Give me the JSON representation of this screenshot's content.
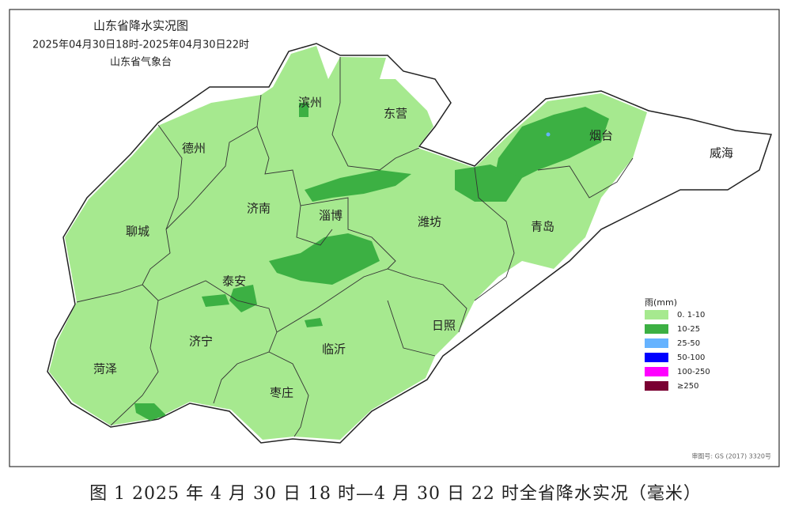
{
  "header": {
    "title": "山东省降水实况图",
    "period": "2025年04月30日18时-2025年04月30日22时",
    "issuer": "山东省气象台"
  },
  "map": {
    "cities": [
      {
        "label": "滨州"
      },
      {
        "label": "东营"
      },
      {
        "label": "德州"
      },
      {
        "label": "烟台"
      },
      {
        "label": "威海"
      },
      {
        "label": "济南"
      },
      {
        "label": "淄博"
      },
      {
        "label": "潍坊"
      },
      {
        "label": "聊城"
      },
      {
        "label": "青岛"
      },
      {
        "label": "泰安"
      },
      {
        "label": "日照"
      },
      {
        "label": "济宁"
      },
      {
        "label": "临沂"
      },
      {
        "label": "菏泽"
      },
      {
        "label": "枣庄"
      }
    ]
  },
  "legend": {
    "title": "雨(mm)",
    "items": [
      {
        "label": "0. 1-10",
        "color": "#a6e98f"
      },
      {
        "label": "10-25",
        "color": "#3cb043"
      },
      {
        "label": "25-50",
        "color": "#66b3ff"
      },
      {
        "label": "50-100",
        "color": "#0000ff"
      },
      {
        "label": "100-250",
        "color": "#ff00ff"
      },
      {
        "label": "≥250",
        "color": "#7a0032"
      }
    ]
  },
  "review_number": "审图号: GS (2017) 3320号",
  "caption": "图 1  2025 年 4 月 30 日 18 时—4 月 30 日 22 时全省降水实况（毫米）"
}
